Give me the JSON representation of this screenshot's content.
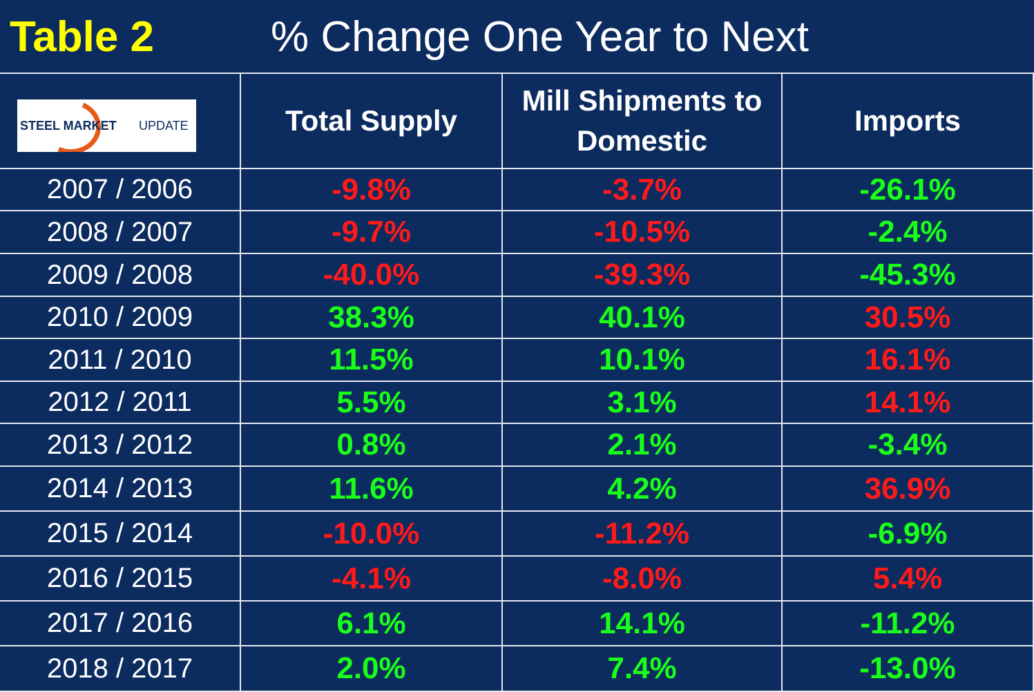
{
  "header": {
    "label": "Table 2",
    "title": "% Change One Year to Next"
  },
  "logo": {
    "bold": "STEEL MARKET",
    "light": "UPDATE"
  },
  "table": {
    "columns": [
      "Total Supply",
      "Mill Shipments to Domestic",
      "Imports"
    ],
    "rows": [
      {
        "period": "2007 / 2006",
        "cells": [
          {
            "text": "-9.8%",
            "color": "#ff1a1a"
          },
          {
            "text": "-3.7%",
            "color": "#ff1a1a"
          },
          {
            "text": "-26.1%",
            "color": "#1aff1a"
          }
        ]
      },
      {
        "period": "2008 / 2007",
        "cells": [
          {
            "text": "-9.7%",
            "color": "#ff1a1a"
          },
          {
            "text": "-10.5%",
            "color": "#ff1a1a"
          },
          {
            "text": "-2.4%",
            "color": "#1aff1a"
          }
        ]
      },
      {
        "period": "2009 / 2008",
        "cells": [
          {
            "text": "-40.0%",
            "color": "#ff1a1a"
          },
          {
            "text": "-39.3%",
            "color": "#ff1a1a"
          },
          {
            "text": "-45.3%",
            "color": "#1aff1a"
          }
        ]
      },
      {
        "period": "2010 / 2009",
        "cells": [
          {
            "text": "38.3%",
            "color": "#1aff1a"
          },
          {
            "text": "40.1%",
            "color": "#1aff1a"
          },
          {
            "text": "30.5%",
            "color": "#ff1a1a"
          }
        ]
      },
      {
        "period": "2011 / 2010",
        "cells": [
          {
            "text": "11.5%",
            "color": "#1aff1a"
          },
          {
            "text": "10.1%",
            "color": "#1aff1a"
          },
          {
            "text": "16.1%",
            "color": "#ff1a1a"
          }
        ]
      },
      {
        "period": "2012 / 2011",
        "cells": [
          {
            "text": "5.5%",
            "color": "#1aff1a"
          },
          {
            "text": "3.1%",
            "color": "#1aff1a"
          },
          {
            "text": "14.1%",
            "color": "#ff1a1a"
          }
        ]
      },
      {
        "period": "2013 / 2012",
        "cells": [
          {
            "text": "0.8%",
            "color": "#1aff1a"
          },
          {
            "text": "2.1%",
            "color": "#1aff1a"
          },
          {
            "text": "-3.4%",
            "color": "#1aff1a"
          }
        ]
      },
      {
        "period": "2014 / 2013",
        "cells": [
          {
            "text": "11.6%",
            "color": "#1aff1a"
          },
          {
            "text": "4.2%",
            "color": "#1aff1a"
          },
          {
            "text": "36.9%",
            "color": "#ff1a1a"
          }
        ]
      },
      {
        "period": "2015 / 2014",
        "cells": [
          {
            "text": "-10.0%",
            "color": "#ff1a1a"
          },
          {
            "text": "-11.2%",
            "color": "#ff1a1a"
          },
          {
            "text": "-6.9%",
            "color": "#1aff1a"
          }
        ]
      },
      {
        "period": "2016 / 2015",
        "cells": [
          {
            "text": "-4.1%",
            "color": "#ff1a1a"
          },
          {
            "text": "-8.0%",
            "color": "#ff1a1a"
          },
          {
            "text": "5.4%",
            "color": "#ff1a1a"
          }
        ]
      },
      {
        "period": "2017 / 2016",
        "cells": [
          {
            "text": "6.1%",
            "color": "#1aff1a"
          },
          {
            "text": "14.1%",
            "color": "#1aff1a"
          },
          {
            "text": "-11.2%",
            "color": "#1aff1a"
          }
        ]
      },
      {
        "period": "2018 / 2017",
        "cells": [
          {
            "text": "2.0%",
            "color": "#1aff1a"
          },
          {
            "text": "7.4%",
            "color": "#1aff1a"
          },
          {
            "text": "-13.0%",
            "color": "#1aff1a"
          }
        ]
      }
    ]
  }
}
